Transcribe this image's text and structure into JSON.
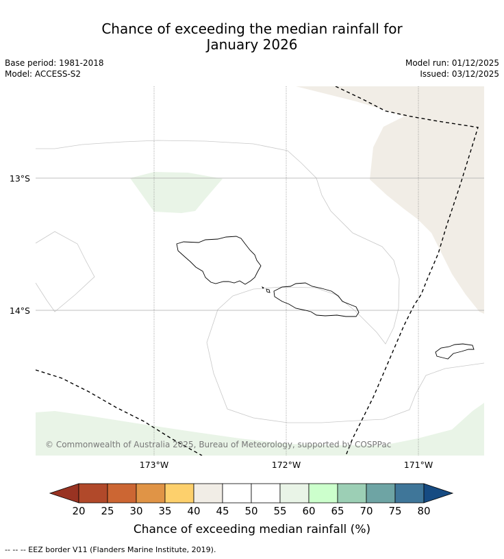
{
  "title": {
    "line1": "Chance of exceeding the median rainfall for",
    "line2": "January 2026"
  },
  "meta": {
    "base_period": "Base period: 1981-2018",
    "model": "Model: ACCESS-S2",
    "model_run": "Model run: 01/12/2025",
    "issued": "Issued: 03/12/2025"
  },
  "map": {
    "lat_labels": [
      "13°S",
      "14°S"
    ],
    "lon_labels": [
      "173°W",
      "172°W",
      "171°W"
    ],
    "copyright": "© Commonwealth of Australia 2025, Bureau of Meteorology, supported by COSPPac",
    "colors": {
      "band_40_45": "#f1ede6",
      "band_55_60": "#e9f4e7",
      "coast": "#000000",
      "contour": "#c8c8c8",
      "gridline": "#aaaaaa",
      "eez": "#000000"
    }
  },
  "colorbar": {
    "ticks": [
      "20",
      "25",
      "30",
      "35",
      "40",
      "45",
      "50",
      "55",
      "60",
      "65",
      "70",
      "75",
      "80"
    ],
    "colors": [
      "#b1492a",
      "#cc6633",
      "#e09446",
      "#fdd06c",
      "#f1ede6",
      "#ffffff",
      "#ffffff",
      "#e9f4e7",
      "#ccffcc",
      "#9ccfb5",
      "#6ea4a4",
      "#3f7699"
    ],
    "under_color": "#993322",
    "over_color": "#164b82",
    "label": "Chance of exceeding median rainfall (%)"
  },
  "footnote": "--  --  -- EEZ border V11 (Flanders Marine Institute, 2019)."
}
